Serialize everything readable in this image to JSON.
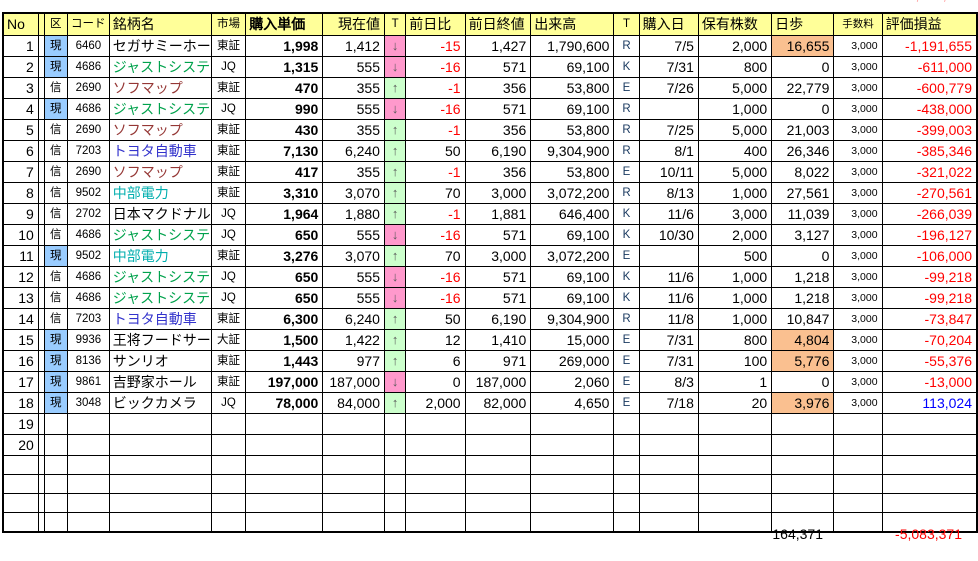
{
  "table": {
    "headers": [
      "No",
      "",
      "区",
      "コード",
      "銘柄名",
      "市場",
      "購入単価",
      "現在値",
      "T",
      "前日比",
      "前日終値",
      "出来高",
      "T",
      "購入日",
      "保有株数",
      "日歩",
      "手数料",
      "評価損益"
    ],
    "rows": [
      {
        "no": "1",
        "kubun": "現",
        "code": "6460",
        "name": "セガサミーホー",
        "name_color": "black",
        "market": "東証",
        "buy": "1,998",
        "cur": "1,412",
        "arrow": "down",
        "chg": "-15",
        "prev": "1,427",
        "vol": "1,790,600",
        "t": "R",
        "date": "7/5",
        "shares": "2,000",
        "hibu": "16,655",
        "hibu_hl": true,
        "fee": "3,000",
        "pl": "-1,191,655"
      },
      {
        "no": "2",
        "kubun": "現",
        "code": "4686",
        "name": "ジャストシステ",
        "name_color": "green",
        "market": "JQ",
        "buy": "1,315",
        "cur": "555",
        "arrow": "down",
        "chg": "-16",
        "prev": "571",
        "vol": "69,100",
        "t": "K",
        "date": "7/31",
        "shares": "800",
        "hibu": "0",
        "hibu_hl": false,
        "fee": "3,000",
        "pl": "-611,000"
      },
      {
        "no": "3",
        "kubun": "信",
        "code": "2690",
        "name": "ソフマップ",
        "name_color": "maroon",
        "market": "東証",
        "buy": "470",
        "cur": "355",
        "arrow": "up",
        "chg": "-1",
        "prev": "356",
        "vol": "53,800",
        "t": "E",
        "date": "7/26",
        "shares": "5,000",
        "hibu": "22,779",
        "hibu_hl": false,
        "fee": "3,000",
        "pl": "-600,779"
      },
      {
        "no": "4",
        "kubun": "現",
        "code": "4686",
        "name": "ジャストシステ",
        "name_color": "green",
        "market": "JQ",
        "buy": "990",
        "cur": "555",
        "arrow": "down",
        "chg": "-16",
        "prev": "571",
        "vol": "69,100",
        "t": "R",
        "date": "",
        "shares": "1,000",
        "hibu": "0",
        "hibu_hl": false,
        "fee": "3,000",
        "pl": "-438,000"
      },
      {
        "no": "5",
        "kubun": "信",
        "code": "2690",
        "name": "ソフマップ",
        "name_color": "maroon",
        "market": "東証",
        "buy": "430",
        "cur": "355",
        "arrow": "up",
        "chg": "-1",
        "prev": "356",
        "vol": "53,800",
        "t": "R",
        "date": "7/25",
        "shares": "5,000",
        "hibu": "21,003",
        "hibu_hl": false,
        "fee": "3,000",
        "pl": "-399,003"
      },
      {
        "no": "6",
        "kubun": "信",
        "code": "7203",
        "name": "トヨタ自動車",
        "name_color": "blue",
        "market": "東証",
        "buy": "7,130",
        "cur": "6,240",
        "arrow": "up",
        "chg": "50",
        "prev": "6,190",
        "vol": "9,304,900",
        "t": "R",
        "date": "8/1",
        "shares": "400",
        "hibu": "26,346",
        "hibu_hl": false,
        "fee": "3,000",
        "pl": "-385,346"
      },
      {
        "no": "7",
        "kubun": "信",
        "code": "2690",
        "name": "ソフマップ",
        "name_color": "maroon",
        "market": "東証",
        "buy": "417",
        "cur": "355",
        "arrow": "up",
        "chg": "-1",
        "prev": "356",
        "vol": "53,800",
        "t": "E",
        "date": "10/11",
        "shares": "5,000",
        "hibu": "8,022",
        "hibu_hl": false,
        "fee": "3,000",
        "pl": "-321,022"
      },
      {
        "no": "8",
        "kubun": "信",
        "code": "9502",
        "name": "中部電力",
        "name_color": "teal",
        "market": "東証",
        "buy": "3,310",
        "cur": "3,070",
        "arrow": "up",
        "chg": "70",
        "prev": "3,000",
        "vol": "3,072,200",
        "t": "R",
        "date": "8/13",
        "shares": "1,000",
        "hibu": "27,561",
        "hibu_hl": false,
        "fee": "3,000",
        "pl": "-270,561"
      },
      {
        "no": "9",
        "kubun": "信",
        "code": "2702",
        "name": "日本マクドナル",
        "name_color": "black",
        "market": "JQ",
        "buy": "1,964",
        "cur": "1,880",
        "arrow": "up",
        "chg": "-1",
        "prev": "1,881",
        "vol": "646,400",
        "t": "K",
        "date": "11/6",
        "shares": "3,000",
        "hibu": "11,039",
        "hibu_hl": false,
        "fee": "3,000",
        "pl": "-266,039"
      },
      {
        "no": "10",
        "kubun": "信",
        "code": "4686",
        "name": "ジャストシステ",
        "name_color": "green",
        "market": "JQ",
        "buy": "650",
        "cur": "555",
        "arrow": "down",
        "chg": "-16",
        "prev": "571",
        "vol": "69,100",
        "t": "K",
        "date": "10/30",
        "shares": "2,000",
        "hibu": "3,127",
        "hibu_hl": false,
        "fee": "3,000",
        "pl": "-196,127"
      },
      {
        "no": "11",
        "kubun": "現",
        "code": "9502",
        "name": "中部電力",
        "name_color": "teal",
        "market": "東証",
        "buy": "3,276",
        "cur": "3,070",
        "arrow": "up",
        "chg": "70",
        "prev": "3,000",
        "vol": "3,072,200",
        "t": "E",
        "date": "",
        "shares": "500",
        "hibu": "0",
        "hibu_hl": false,
        "fee": "3,000",
        "pl": "-106,000"
      },
      {
        "no": "12",
        "kubun": "信",
        "code": "4686",
        "name": "ジャストシステ",
        "name_color": "green",
        "market": "JQ",
        "buy": "650",
        "cur": "555",
        "arrow": "down",
        "chg": "-16",
        "prev": "571",
        "vol": "69,100",
        "t": "K",
        "date": "11/6",
        "shares": "1,000",
        "hibu": "1,218",
        "hibu_hl": false,
        "fee": "3,000",
        "pl": "-99,218"
      },
      {
        "no": "13",
        "kubun": "信",
        "code": "4686",
        "name": "ジャストシステ",
        "name_color": "green",
        "market": "JQ",
        "buy": "650",
        "cur": "555",
        "arrow": "down",
        "chg": "-16",
        "prev": "571",
        "vol": "69,100",
        "t": "K",
        "date": "11/6",
        "shares": "1,000",
        "hibu": "1,218",
        "hibu_hl": false,
        "fee": "3,000",
        "pl": "-99,218"
      },
      {
        "no": "14",
        "kubun": "信",
        "code": "7203",
        "name": "トヨタ自動車",
        "name_color": "blue",
        "market": "東証",
        "buy": "6,300",
        "cur": "6,240",
        "arrow": "up",
        "chg": "50",
        "prev": "6,190",
        "vol": "9,304,900",
        "t": "R",
        "date": "11/8",
        "shares": "1,000",
        "hibu": "10,847",
        "hibu_hl": false,
        "fee": "3,000",
        "pl": "-73,847"
      },
      {
        "no": "15",
        "kubun": "現",
        "code": "9936",
        "name": "王将フードサー",
        "name_color": "black",
        "market": "大証",
        "buy": "1,500",
        "cur": "1,422",
        "arrow": "up",
        "chg": "12",
        "prev": "1,410",
        "vol": "15,000",
        "t": "E",
        "date": "7/31",
        "shares": "800",
        "hibu": "4,804",
        "hibu_hl": true,
        "fee": "3,000",
        "pl": "-70,204"
      },
      {
        "no": "16",
        "kubun": "現",
        "code": "8136",
        "name": "サンリオ",
        "name_color": "black",
        "market": "東証",
        "buy": "1,443",
        "cur": "977",
        "arrow": "up",
        "chg": "6",
        "prev": "971",
        "vol": "269,000",
        "t": "E",
        "date": "7/31",
        "shares": "100",
        "hibu": "5,776",
        "hibu_hl": true,
        "fee": "3,000",
        "pl": "-55,376"
      },
      {
        "no": "17",
        "kubun": "現",
        "code": "9861",
        "name": "吉野家ホール",
        "name_color": "black",
        "market": "東証",
        "buy": "197,000",
        "cur": "187,000",
        "arrow": "down",
        "chg": "0",
        "prev": "187,000",
        "vol": "2,060",
        "t": "E",
        "date": "8/3",
        "shares": "1",
        "hibu": "0",
        "hibu_hl": false,
        "fee": "3,000",
        "pl": "-13,000"
      },
      {
        "no": "18",
        "kubun": "現",
        "code": "3048",
        "name": "ビックカメラ",
        "name_color": "black",
        "market": "JQ",
        "buy": "78,000",
        "cur": "84,000",
        "arrow": "up",
        "chg": "2,000",
        "prev": "82,000",
        "vol": "4,650",
        "t": "E",
        "date": "7/18",
        "shares": "20",
        "hibu": "3,976",
        "hibu_hl": true,
        "fee": "3,000",
        "pl": "113,024"
      }
    ],
    "empty_numbered_rows": [
      "19",
      "20"
    ],
    "empty_unnumbered_row_count": 4,
    "footer": {
      "shares_total": "164,371",
      "pl_total": "-5,083,371"
    }
  },
  "icons": {
    "down_arrow": "↓",
    "up_arrow": "↑"
  },
  "colors": {
    "header_bg": "#FFFF99",
    "genbutsu_bg": "#99CCFF",
    "down_bg": "#FF99CC",
    "up_bg": "#CCFFCC",
    "highlight_bg": "#FAC090",
    "negative": "#FF0000",
    "positive_pl": "#0000FF",
    "trade_type": "#17375E",
    "arrow_color": "#595959",
    "name_colors": {
      "black": "#000000",
      "maroon": "#953735",
      "green": "#00A24C",
      "blue": "#3333CC",
      "teal": "#00AEAE"
    }
  }
}
